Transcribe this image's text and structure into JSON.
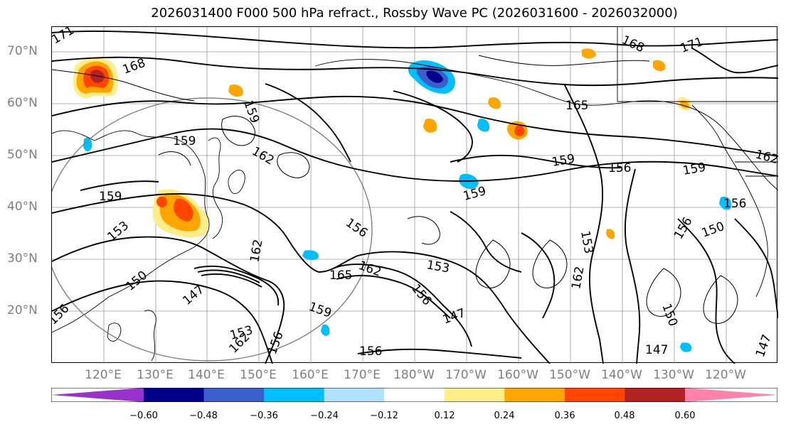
{
  "title": "2026031400 F000 500 hPa refract., Rossby Wave PC (2026031600 - 2026032000)",
  "map": {
    "lat_labels": [
      "70°N",
      "60°N",
      "50°N",
      "40°N",
      "30°N",
      "20°N"
    ],
    "lon_labels": [
      "120°E",
      "130°E",
      "140°E",
      "150°E",
      "160°E",
      "170°E",
      "180°W",
      "170°W",
      "160°W",
      "150°W",
      "140°W",
      "130°W",
      "120°W"
    ],
    "contour_labels": [
      "171",
      "168",
      "165",
      "162",
      "159",
      "156",
      "153",
      "150",
      "147"
    ],
    "colors": {
      "coast": "#000000",
      "grid": "#999999",
      "great_circle": "#808080"
    }
  },
  "colorbar": {
    "ticks": [
      "−0.60",
      "−0.48",
      "−0.36",
      "−0.24",
      "−0.12",
      "0.12",
      "0.24",
      "0.36",
      "0.48",
      "0.60"
    ],
    "colors": [
      "#9932cc",
      "#00008b",
      "#3a5fcd",
      "#00bfff",
      "#b0e2ff",
      "#ffffff",
      "#ffec8b",
      "#ffa500",
      "#ff4500",
      "#b22222",
      "#ff82ab"
    ]
  }
}
